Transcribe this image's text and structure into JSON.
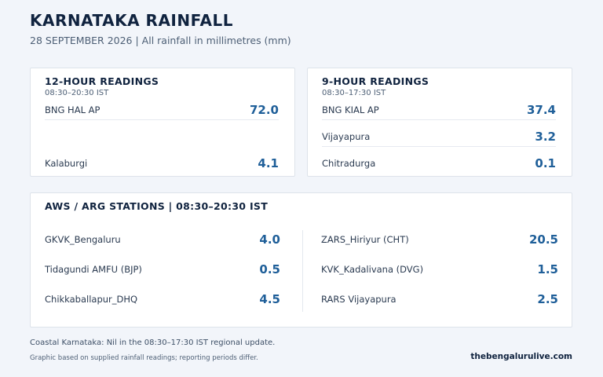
{
  "header": {
    "title": "KARNATAKA RAINFALL",
    "subtitle": "28 SEPTEMBER 2026  |  All rainfall in millimetres (mm)"
  },
  "card_12h": {
    "title": "12-HOUR READINGS",
    "period": "08:30–20:30 IST",
    "rows": [
      {
        "station": "BNG HAL AP",
        "value": "72.0"
      },
      {
        "station": "Kalaburgi",
        "value": "4.1"
      }
    ]
  },
  "card_9h": {
    "title": "9-HOUR READINGS",
    "period": "08:30–17:30 IST",
    "rows": [
      {
        "station": "BNG KIAL AP",
        "value": "37.4"
      },
      {
        "station": "Vijayapura",
        "value": "3.2"
      },
      {
        "station": "Chitradurga",
        "value": "0.1"
      }
    ]
  },
  "aws": {
    "title": "AWS / ARG STATIONS  |  08:30–20:30 IST",
    "left": [
      {
        "station": "GKVK_Bengaluru",
        "value": "4.0"
      },
      {
        "station": "Tidagundi AMFU (BJP)",
        "value": "0.5"
      },
      {
        "station": "Chikkaballapur_DHQ",
        "value": "4.5"
      }
    ],
    "right": [
      {
        "station": "ZARS_Hiriyur (CHT)",
        "value": "20.5"
      },
      {
        "station": "KVK_Kadalivana (DVG)",
        "value": "1.5"
      },
      {
        "station": "RARS Vijayapura",
        "value": "2.5"
      }
    ]
  },
  "footer": {
    "note": "Coastal Karnataka: Nil in the 08:30–17:30 IST regional update.",
    "disclaimer": "Graphic based on supplied rainfall readings; reporting periods differ.",
    "brand": "thebengalurulive.com"
  }
}
